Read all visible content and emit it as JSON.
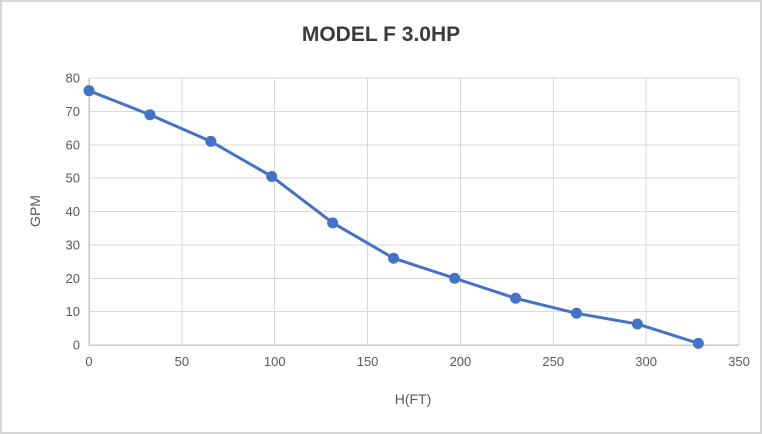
{
  "chart": {
    "title": "MODEL F 3.0HP",
    "xlabel": "H(FT)",
    "ylabel": "GPM"
  },
  "chart_data": {
    "type": "line",
    "title": "MODEL F 3.0HP",
    "xlabel": "H(FT)",
    "ylabel": "GPM",
    "x": [
      0,
      32.8,
      65.6,
      98.4,
      131.2,
      164.0,
      196.9,
      229.7,
      262.5,
      295.3,
      328.1
    ],
    "y": [
      76.2,
      69,
      61,
      50.5,
      36.6,
      26,
      20,
      14,
      9.5,
      6.3,
      0.5
    ],
    "xlim": [
      0,
      350
    ],
    "ylim": [
      0,
      80
    ],
    "x_ticks": [
      0,
      50,
      100,
      150,
      200,
      250,
      300,
      350
    ],
    "y_ticks": [
      0,
      10,
      20,
      30,
      40,
      50,
      60,
      70,
      80
    ],
    "grid": true,
    "legend_position": "none",
    "marker": "circle",
    "marker_radius": 5.5,
    "line_width": 3,
    "colors": {
      "series": "#4472C4",
      "gridline": "#D9D9D9",
      "axis_line": "#C9C9C9",
      "tick_label": "#595959",
      "title": "#3B3B3B",
      "background": "#FFFFFF",
      "border": "#D6D6D6"
    }
  }
}
